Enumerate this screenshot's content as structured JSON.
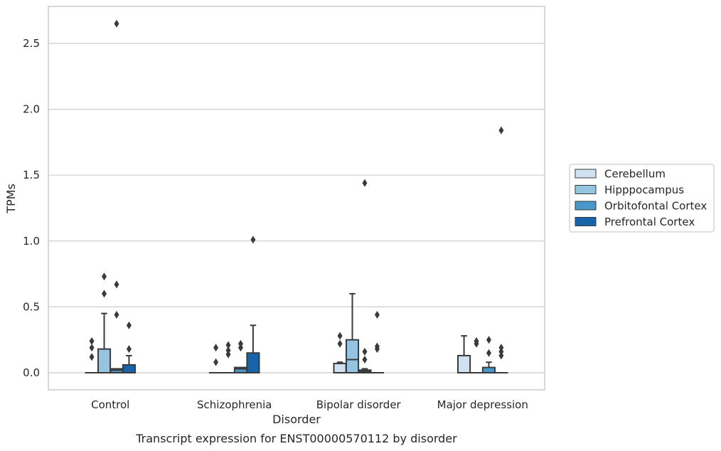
{
  "chart_data": {
    "type": "box",
    "caption": "Transcript expression for ENST00000570112 by disorder",
    "xlabel": "Disorder",
    "ylabel": "TPMs",
    "ylim": [
      -0.13,
      2.8
    ],
    "yticks": [
      0.0,
      0.5,
      1.0,
      1.5,
      2.0,
      2.5
    ],
    "ytick_labels": [
      "0.0",
      "0.5",
      "1.0",
      "1.5",
      "2.0",
      "2.5"
    ],
    "grid": "horizontal",
    "legend_position": "right",
    "categories": [
      "Control",
      "Schizophrenia",
      "Bipolar disorder",
      "Major depression"
    ],
    "series": [
      {
        "name": "Cerebellum",
        "color": "#d0e1f2",
        "boxes": [
          {
            "q1": 0.0,
            "median": 0.0,
            "q3": 0.0,
            "whislo": 0.0,
            "whishi": 0.0,
            "fliers": [
              0.12,
              0.19,
              0.24
            ]
          },
          {
            "q1": 0.0,
            "median": 0.0,
            "q3": 0.0,
            "whislo": 0.0,
            "whishi": 0.0,
            "fliers": [
              0.08,
              0.19
            ]
          },
          {
            "q1": 0.0,
            "median": 0.0,
            "q3": 0.07,
            "whislo": 0.0,
            "whishi": 0.08,
            "fliers": [
              0.22,
              0.28
            ]
          },
          {
            "q1": 0.0,
            "median": 0.0,
            "q3": 0.13,
            "whislo": 0.0,
            "whishi": 0.28,
            "fliers": []
          }
        ]
      },
      {
        "name": "Hipppocampus",
        "color": "#94c4df",
        "boxes": [
          {
            "q1": 0.0,
            "median": 0.0,
            "q3": 0.18,
            "whislo": 0.0,
            "whishi": 0.45,
            "fliers": [
              0.6,
              0.73
            ]
          },
          {
            "q1": 0.0,
            "median": 0.0,
            "q3": 0.0,
            "whislo": 0.0,
            "whishi": 0.0,
            "fliers": [
              0.14,
              0.17,
              0.21
            ]
          },
          {
            "q1": 0.0,
            "median": 0.1,
            "q3": 0.25,
            "whislo": 0.0,
            "whishi": 0.6,
            "fliers": []
          },
          {
            "q1": 0.0,
            "median": 0.0,
            "q3": 0.0,
            "whislo": 0.0,
            "whishi": 0.0,
            "fliers": [
              0.22,
              0.24
            ]
          }
        ]
      },
      {
        "name": "Orbitofontal Cortex",
        "color": "#4a98c9",
        "boxes": [
          {
            "q1": 0.0,
            "median": 0.02,
            "q3": 0.03,
            "whislo": 0.0,
            "whishi": 0.03,
            "fliers": [
              0.44,
              0.67,
              2.65
            ]
          },
          {
            "q1": 0.0,
            "median": 0.03,
            "q3": 0.04,
            "whislo": 0.0,
            "whishi": 0.04,
            "fliers": [
              0.19,
              0.22
            ]
          },
          {
            "q1": 0.0,
            "median": 0.01,
            "q3": 0.02,
            "whislo": 0.0,
            "whishi": 0.03,
            "fliers": [
              0.1,
              0.16,
              1.44
            ]
          },
          {
            "q1": 0.0,
            "median": 0.0,
            "q3": 0.04,
            "whislo": 0.0,
            "whishi": 0.08,
            "fliers": [
              0.15,
              0.25
            ]
          }
        ]
      },
      {
        "name": "Prefrontal Cortex",
        "color": "#1764ab",
        "boxes": [
          {
            "q1": 0.0,
            "median": 0.0,
            "q3": 0.06,
            "whislo": 0.0,
            "whishi": 0.13,
            "fliers": [
              0.18,
              0.36
            ]
          },
          {
            "q1": 0.0,
            "median": 0.0,
            "q3": 0.15,
            "whislo": 0.0,
            "whishi": 0.36,
            "fliers": [
              1.01
            ]
          },
          {
            "q1": 0.0,
            "median": 0.0,
            "q3": 0.0,
            "whislo": 0.0,
            "whishi": 0.0,
            "fliers": [
              0.18,
              0.2,
              0.44
            ]
          },
          {
            "q1": 0.0,
            "median": 0.0,
            "q3": 0.0,
            "whislo": 0.0,
            "whishi": 0.0,
            "fliers": [
              0.13,
              0.16,
              0.19,
              1.84
            ]
          }
        ]
      }
    ]
  }
}
